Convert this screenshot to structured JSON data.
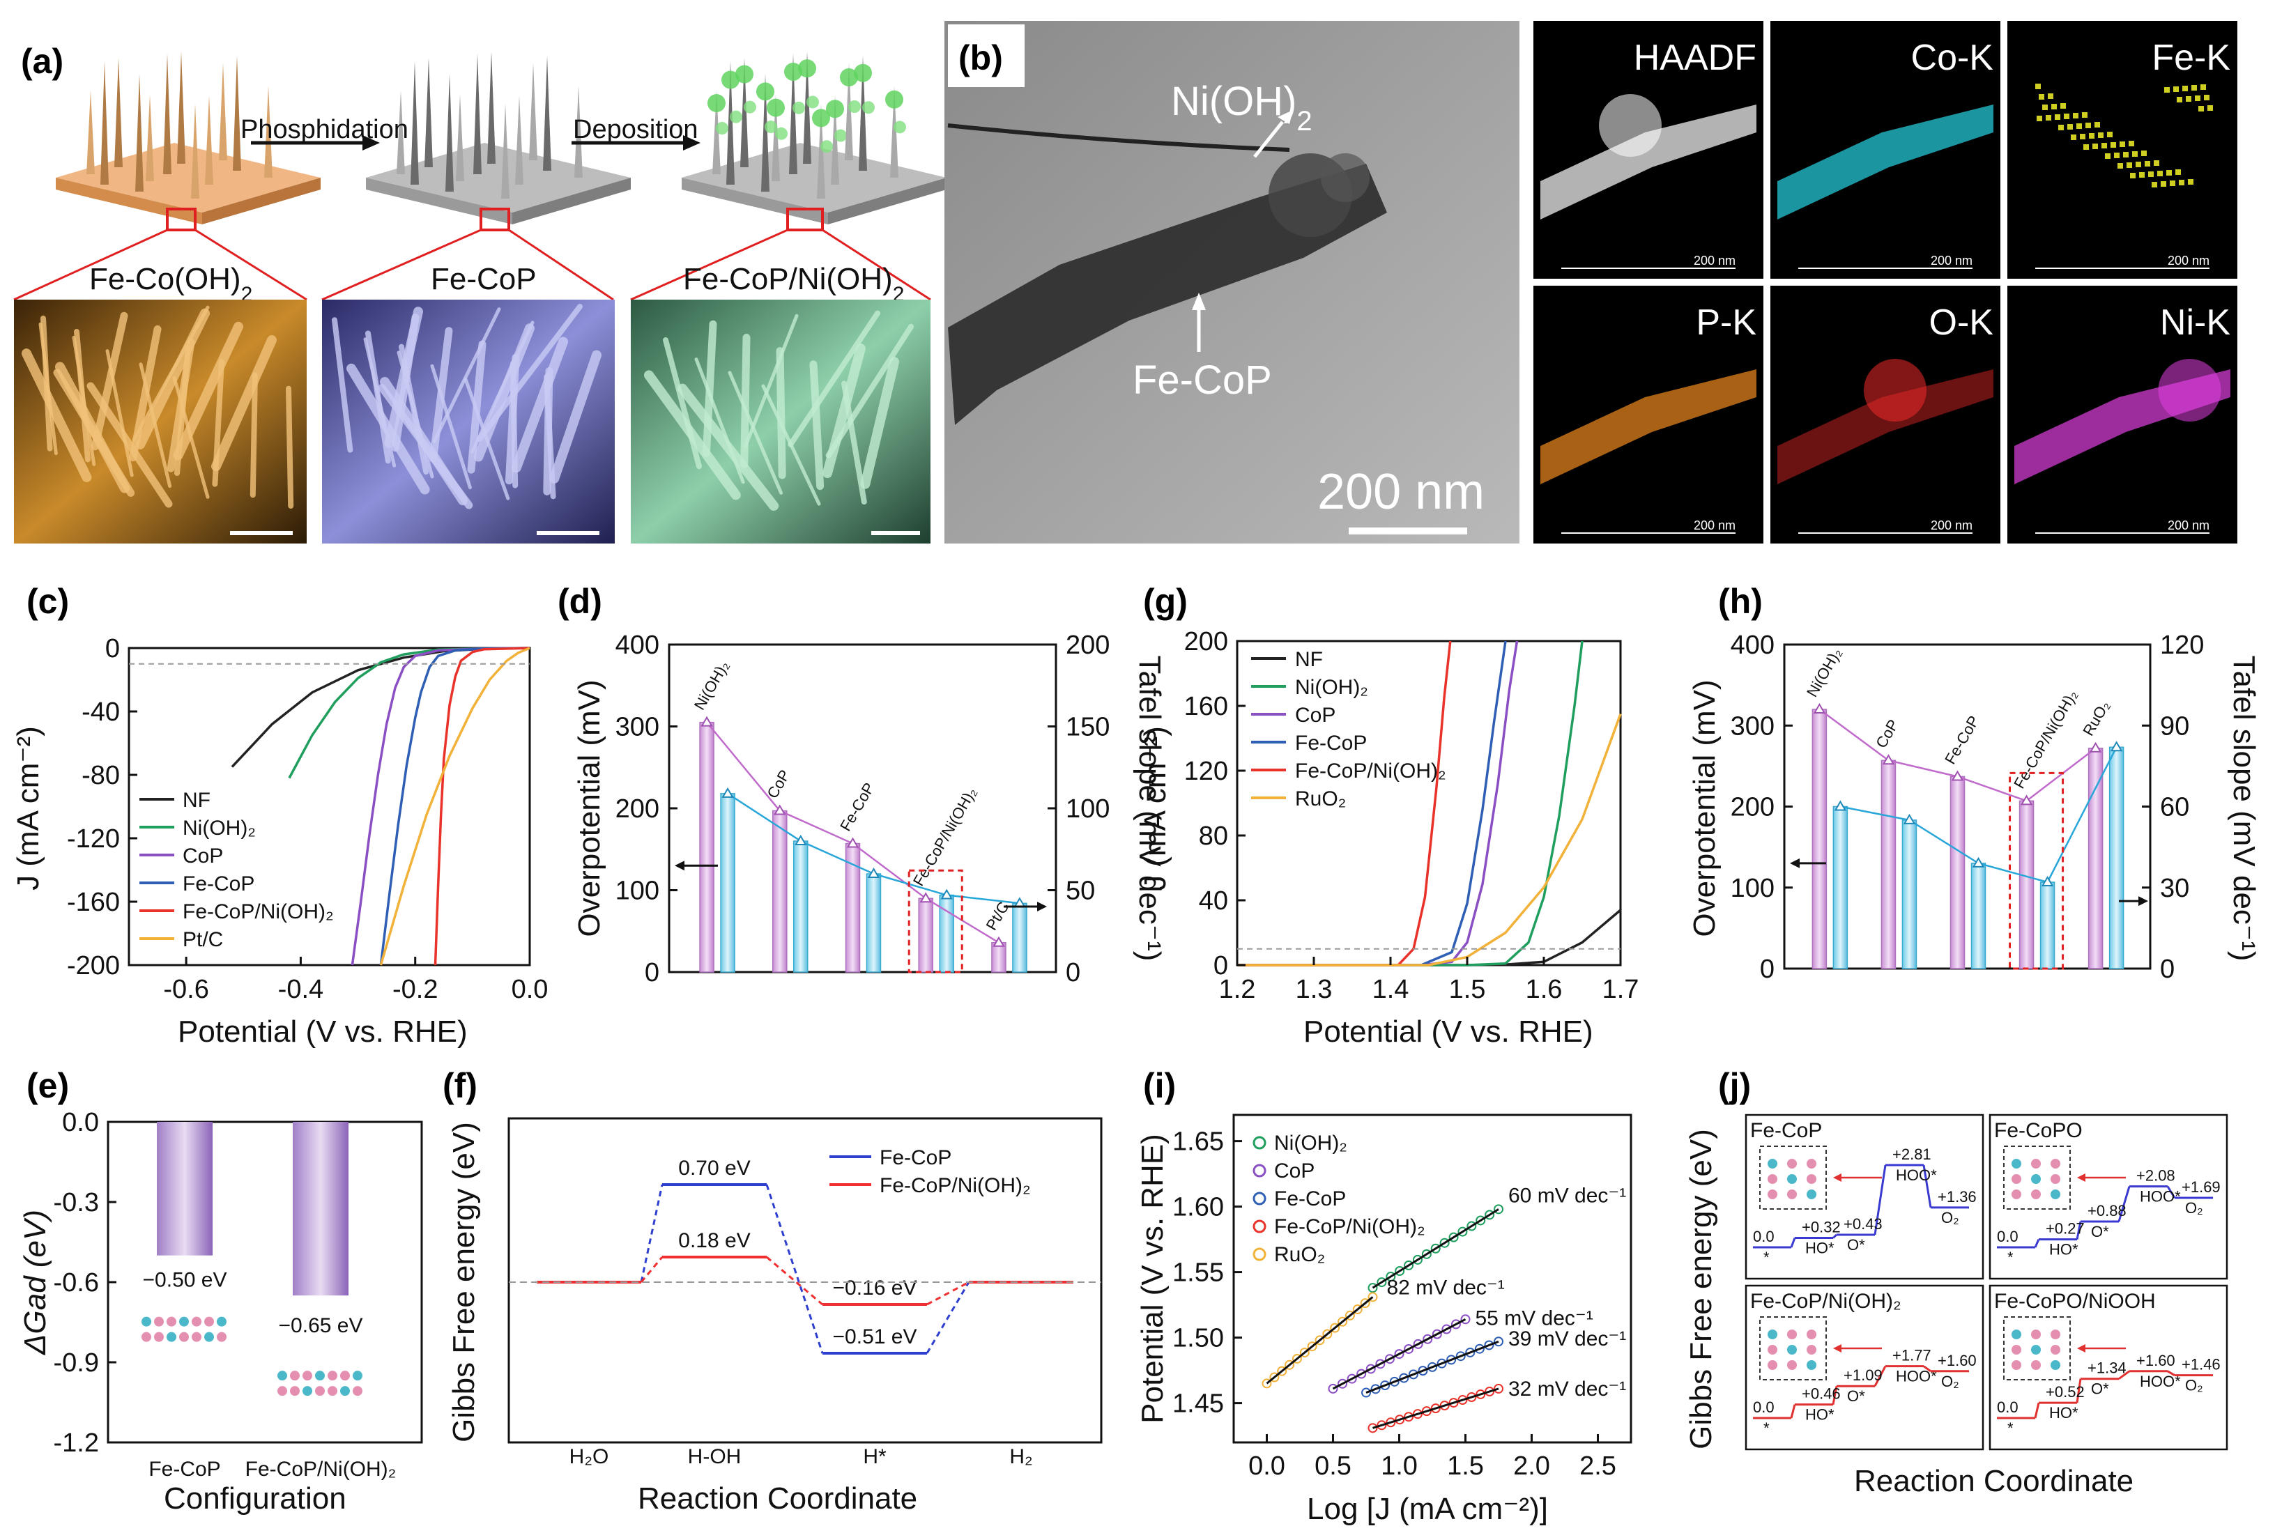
{
  "colors": {
    "NF": "#222222",
    "NiOH2": "#1f9e5e",
    "CoP": "#8b4fc4",
    "FeCoP": "#2e5fb5",
    "FeCoPNiOH2": "#e8322a",
    "PtC": "#f2b23a",
    "RuO2": "#f2b23a",
    "magenta": "#c88fd2",
    "cyan": "#7fd3ec"
  },
  "panel_a": {
    "label": "(a)",
    "step1": "Phosphidation",
    "step2": "Deposition",
    "mat1": "Fe-Co(OH)",
    "mat1_sub": "2",
    "mat2": "Fe-CoP",
    "mat3": "Fe-CoP/Ni(OH)",
    "mat3_sub": "2"
  },
  "panel_b": {
    "label": "(b)",
    "ann_top": "Ni(OH)",
    "ann_top_sub": "2",
    "ann_bottom": "Fe-CoP",
    "scale_text": "200 nm",
    "maps": [
      {
        "name": "HAADF",
        "scale": "200 nm"
      },
      {
        "name": "Co-K",
        "scale": "200 nm"
      },
      {
        "name": "Fe-K",
        "scale": "200 nm"
      },
      {
        "name": "P-K",
        "scale": "200 nm"
      },
      {
        "name": "O-K",
        "scale": "200 nm"
      },
      {
        "name": "Ni-K",
        "scale": "200 nm"
      }
    ]
  },
  "chart_data": [
    {
      "panel": "(c)",
      "type": "line",
      "xlabel": "Potential (V vs. RHE)",
      "ylabel": "J (mA cm⁻²)",
      "xlim": [
        -0.7,
        0.0
      ],
      "ylim": [
        -200,
        0
      ],
      "xticks": [
        "-0.6",
        "-0.4",
        "-0.2",
        "0.0"
      ],
      "yticks": [
        "0",
        "-40",
        "-80",
        "-120",
        "-160",
        "-200"
      ],
      "legend": [
        "NF",
        "Ni(OH)₂",
        "CoP",
        "Fe-CoP",
        "Fe-CoP/Ni(OH)₂",
        "Pt/C"
      ],
      "series": [
        {
          "name": "NF",
          "x": [
            -0.52,
            -0.45,
            -0.38,
            -0.3,
            -0.22,
            -0.15,
            -0.08,
            0
          ],
          "y": [
            -75,
            -48,
            -28,
            -14,
            -6,
            -2,
            -0.5,
            0
          ]
        },
        {
          "name": "Ni(OH)₂",
          "x": [
            -0.42,
            -0.38,
            -0.34,
            -0.3,
            -0.26,
            -0.22,
            -0.16,
            -0.08,
            0
          ],
          "y": [
            -82,
            -55,
            -34,
            -19,
            -9,
            -4,
            -1,
            -0.3,
            0
          ]
        },
        {
          "name": "CoP",
          "x": [
            -0.31,
            -0.295,
            -0.28,
            -0.265,
            -0.25,
            -0.235,
            -0.22,
            -0.2,
            -0.16,
            -0.08,
            0
          ],
          "y": [
            -200,
            -160,
            -118,
            -80,
            -48,
            -25,
            -12,
            -5,
            -1.5,
            -0.3,
            0
          ]
        },
        {
          "name": "Fe-CoP",
          "x": [
            -0.26,
            -0.245,
            -0.23,
            -0.215,
            -0.2,
            -0.19,
            -0.175,
            -0.16,
            -0.13,
            -0.08,
            0
          ],
          "y": [
            -200,
            -155,
            -112,
            -74,
            -44,
            -28,
            -12,
            -5,
            -1.5,
            -0.3,
            0
          ]
        },
        {
          "name": "Fe-CoP/Ni(OH)₂",
          "x": [
            -0.165,
            -0.16,
            -0.155,
            -0.15,
            -0.14,
            -0.13,
            -0.12,
            -0.1,
            -0.08,
            0
          ],
          "y": [
            -200,
            -150,
            -105,
            -70,
            -36,
            -18,
            -8,
            -2.5,
            -0.8,
            0
          ]
        },
        {
          "name": "Pt/C",
          "x": [
            -0.26,
            -0.22,
            -0.18,
            -0.14,
            -0.1,
            -0.07,
            -0.04,
            -0.02,
            0
          ],
          "y": [
            -200,
            -150,
            -105,
            -68,
            -38,
            -20,
            -8,
            -3,
            0
          ]
        }
      ]
    },
    {
      "panel": "(d)",
      "type": "bar",
      "ylabel": "Overpotential (mV)",
      "y2label": "Tafel slope (mV dec⁻¹)",
      "ylim": [
        0,
        400
      ],
      "y2lim": [
        0,
        200
      ],
      "yticks": [
        "0",
        "100",
        "200",
        "300",
        "400"
      ],
      "y2ticks": [
        "0",
        "50",
        "100",
        "150",
        "200"
      ],
      "categories": [
        "Ni(OH)₂",
        "CoP",
        "Fe-CoP",
        "Fe-CoP/Ni(OH)₂",
        "Pt/C"
      ],
      "series": [
        {
          "name": "Overpotential",
          "values": [
            305,
            197,
            157,
            90,
            36
          ]
        },
        {
          "name": "Tafel slope",
          "values": [
            109,
            80,
            60,
            47,
            42
          ]
        }
      ]
    },
    {
      "panel": "(g)",
      "type": "line",
      "xlabel": "Potential (V vs. RHE)",
      "ylabel": "J (mA cm⁻²)",
      "xlim": [
        1.2,
        1.7
      ],
      "ylim": [
        0,
        200
      ],
      "xticks": [
        "1.2",
        "1.3",
        "1.4",
        "1.5",
        "1.6",
        "1.7"
      ],
      "yticks": [
        "0",
        "40",
        "80",
        "120",
        "160",
        "200"
      ],
      "legend": [
        "NF",
        "Ni(OH)₂",
        "CoP",
        "Fe-CoP",
        "Fe-CoP/Ni(OH)₂",
        "RuO₂"
      ],
      "series": [
        {
          "name": "NF",
          "x": [
            1.2,
            1.5,
            1.55,
            1.6,
            1.65,
            1.7
          ],
          "y": [
            0,
            0,
            0.3,
            2,
            14,
            34
          ]
        },
        {
          "name": "Ni(OH)₂",
          "x": [
            1.2,
            1.5,
            1.55,
            1.58,
            1.6,
            1.62,
            1.64,
            1.65
          ],
          "y": [
            0,
            0,
            1,
            14,
            42,
            92,
            160,
            200
          ]
        },
        {
          "name": "CoP",
          "x": [
            1.2,
            1.44,
            1.48,
            1.5,
            1.52,
            1.54,
            1.555,
            1.565
          ],
          "y": [
            0,
            0,
            2,
            14,
            50,
            112,
            170,
            200
          ]
        },
        {
          "name": "Fe-CoP",
          "x": [
            1.2,
            1.44,
            1.48,
            1.5,
            1.52,
            1.535,
            1.55
          ],
          "y": [
            0,
            0,
            8,
            38,
            96,
            150,
            200
          ]
        },
        {
          "name": "Fe-CoP/Ni(OH)₂",
          "x": [
            1.2,
            1.41,
            1.43,
            1.445,
            1.46,
            1.47,
            1.478
          ],
          "y": [
            0,
            0,
            10,
            42,
            110,
            165,
            200
          ]
        },
        {
          "name": "RuO₂",
          "x": [
            1.2,
            1.45,
            1.5,
            1.55,
            1.6,
            1.65,
            1.7
          ],
          "y": [
            0,
            0,
            5,
            20,
            48,
            90,
            155
          ]
        }
      ]
    },
    {
      "panel": "(h)",
      "type": "bar",
      "ylabel": "Overpotential (mV)",
      "y2label": "Tafel slope (mV dec⁻¹)",
      "ylim": [
        0,
        400
      ],
      "y2lim": [
        0,
        120
      ],
      "yticks": [
        "0",
        "100",
        "200",
        "300",
        "400"
      ],
      "y2ticks": [
        "0",
        "30",
        "60",
        "90",
        "120"
      ],
      "categories": [
        "Ni(OH)₂",
        "CoP",
        "Fe-CoP",
        "Fe-CoP/Ni(OH)₂",
        "RuO₂"
      ],
      "series": [
        {
          "name": "Overpotential",
          "values": [
            320,
            257,
            237,
            207,
            272
          ]
        },
        {
          "name": "Tafel slope",
          "values": [
            60,
            55,
            39,
            32,
            82
          ]
        }
      ]
    },
    {
      "panel": "(e)",
      "type": "bar",
      "xlabel": "Configuration",
      "ylabel": "ΔGad (eV)",
      "ylim": [
        -1.2,
        0.0
      ],
      "yticks": [
        "0.0",
        "-0.3",
        "-0.6",
        "-0.9",
        "-1.2"
      ],
      "categories": [
        "Fe-CoP",
        "Fe-CoP/Ni(OH)₂"
      ],
      "values": [
        -0.5,
        -0.65
      ],
      "value_labels": [
        "−0.50 eV",
        "−0.65 eV"
      ]
    },
    {
      "panel": "(f)",
      "type": "line",
      "xlabel": "Reaction Coordinate",
      "ylabel": "Gibbs Free energy (eV)",
      "categories": [
        "H₂O",
        "H-OH",
        "H*",
        "H₂"
      ],
      "series": [
        {
          "name": "Fe-CoP",
          "values": [
            0,
            0.7,
            -0.51,
            0
          ],
          "labels": [
            "0.70 eV",
            "−0.51 eV"
          ]
        },
        {
          "name": "Fe-CoP/Ni(OH)₂",
          "values": [
            0,
            0.18,
            -0.16,
            0
          ],
          "labels": [
            "0.18 eV",
            "−0.16 eV"
          ]
        }
      ]
    },
    {
      "panel": "(i)",
      "type": "scatter",
      "xlabel": "Log [J (mA cm⁻²)]",
      "ylabel": "Potential (V vs. RHE)",
      "xlim": [
        -0.25,
        2.75
      ],
      "ylim": [
        1.42,
        1.67
      ],
      "xticks": [
        "0.0",
        "0.5",
        "1.0",
        "1.5",
        "2.0",
        "2.5"
      ],
      "yticks": [
        "1.45",
        "1.50",
        "1.55",
        "1.60",
        "1.65"
      ],
      "series": [
        {
          "name": "Ni(OH)₂",
          "x": [
            0.8,
            1.75
          ],
          "y": [
            1.538,
            1.598
          ],
          "label": "60 mV dec⁻¹"
        },
        {
          "name": "CoP",
          "x": [
            0.5,
            1.5
          ],
          "y": [
            1.461,
            1.514
          ],
          "label": "55 mV dec⁻¹"
        },
        {
          "name": "Fe-CoP",
          "x": [
            0.75,
            1.75
          ],
          "y": [
            1.458,
            1.497
          ],
          "label": "39 mV dec⁻¹"
        },
        {
          "name": "Fe-CoP/Ni(OH)₂",
          "x": [
            0.8,
            1.75
          ],
          "y": [
            1.431,
            1.461
          ],
          "label": "32 mV dec⁻¹"
        },
        {
          "name": "RuO₂",
          "x": [
            0.0,
            0.8
          ],
          "y": [
            1.465,
            1.531
          ],
          "label": "82 mV dec⁻¹"
        }
      ]
    },
    {
      "panel": "(j)",
      "type": "line",
      "xlabel": "Reaction Coordinate",
      "ylabel": "Gibbs Free energy (eV)",
      "subplots": [
        {
          "title": "Fe-CoP",
          "steps": [
            "0.0",
            "+0.32",
            "+0.43",
            "+2.81",
            "+1.36"
          ],
          "species": [
            "*",
            "HO*",
            "O*",
            "HOO*",
            "O₂"
          ]
        },
        {
          "title": "Fe-CoPO",
          "steps": [
            "0.0",
            "+0.27",
            "+0.88",
            "+2.08",
            "+1.69"
          ],
          "species": [
            "*",
            "HO*",
            "O*",
            "HOO*",
            "O₂"
          ]
        },
        {
          "title": "Fe-CoP/Ni(OH)₂",
          "steps": [
            "0.0",
            "+0.46",
            "+1.09",
            "+1.77",
            "+1.60"
          ],
          "species": [
            "*",
            "HO*",
            "O*",
            "HOO*",
            "O₂"
          ]
        },
        {
          "title": "Fe-CoPO/NiOOH",
          "steps": [
            "0.0",
            "+0.52",
            "+1.34",
            "+1.60",
            "+1.46"
          ],
          "species": [
            "*",
            "HO*",
            "O*",
            "HOO*",
            "O₂"
          ]
        }
      ]
    }
  ]
}
